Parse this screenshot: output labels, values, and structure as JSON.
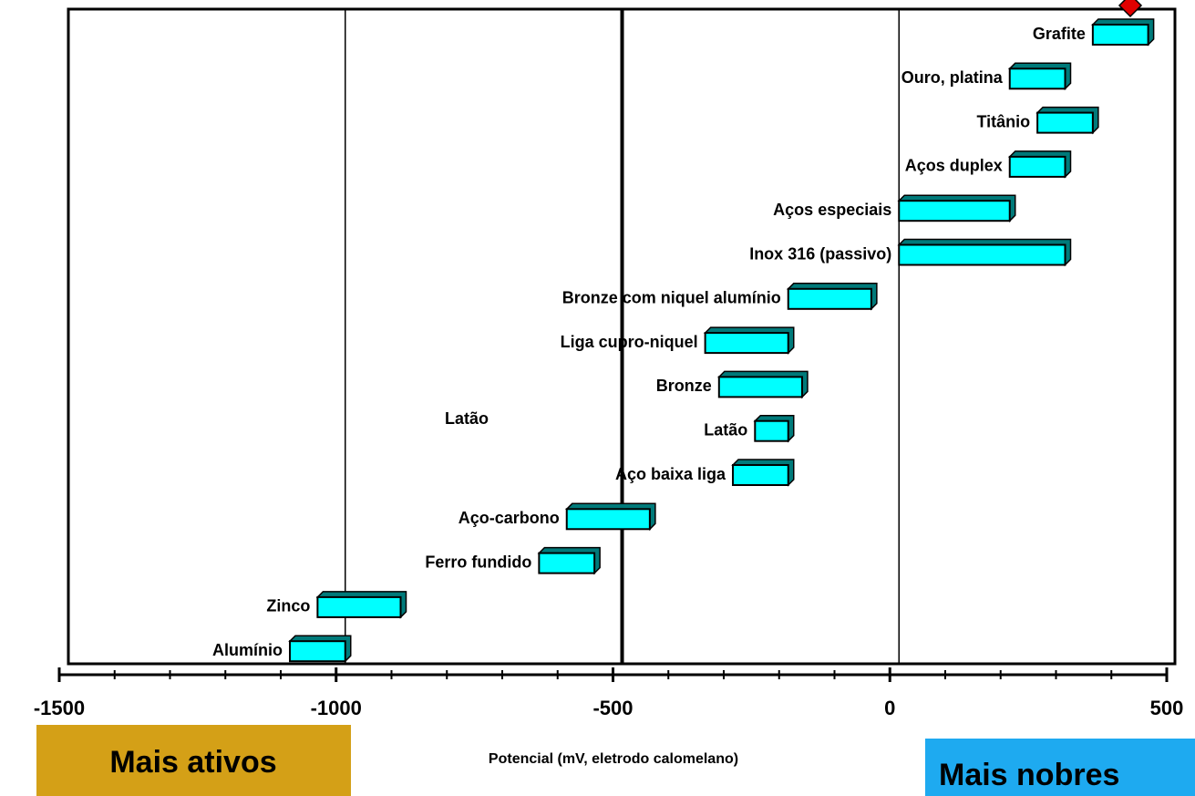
{
  "chart_data": {
    "type": "range-bar",
    "categories": [
      "Grafite",
      "Ouro, platina",
      "Titânio",
      "Aços duplex",
      "Aços especiais",
      "Inox 316 (passivo)",
      "Bronze com niquel alumínio",
      "Liga cupro-niquel",
      "Bronze",
      "Latão",
      "Aço baixa liga",
      "Aço-carbono",
      "Ferro fundido",
      "Zinco",
      "Alumínio"
    ],
    "low": [
      350,
      200,
      250,
      200,
      0,
      0,
      -200,
      -350,
      -325,
      -260,
      -300,
      -600,
      -650,
      -1050,
      -1100
    ],
    "high": [
      450,
      300,
      350,
      300,
      200,
      300,
      -50,
      -200,
      -175,
      -200,
      -200,
      -450,
      -550,
      -900,
      -1000
    ],
    "color": "#00ffff",
    "xlim": [
      -1500,
      500
    ],
    "xticks": [
      -1500,
      -1000,
      -500,
      0,
      500
    ],
    "grid": true,
    "xlabel": "Potencial (mV, eletrodo calomelano)",
    "annotations": [
      "Latão",
      "Mais ativos",
      "Mais nobres"
    ]
  }
}
